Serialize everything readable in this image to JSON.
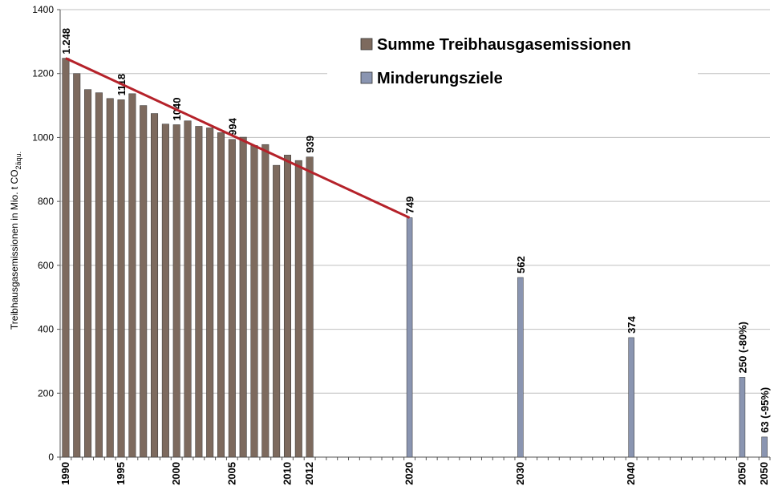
{
  "chart_data": {
    "type": "bar",
    "ylabel": "Treibhausgasemissionen in Mio. t CO",
    "ylabel_sub": "2äqu.",
    "categories": [
      "1990",
      null,
      null,
      null,
      null,
      "1995",
      null,
      null,
      null,
      null,
      "2000",
      null,
      null,
      null,
      null,
      "2005",
      null,
      null,
      null,
      null,
      "2010",
      null,
      "2012",
      null,
      null,
      null,
      null,
      null,
      null,
      null,
      null,
      "2020",
      null,
      null,
      null,
      null,
      null,
      null,
      null,
      null,
      null,
      "2030",
      null,
      null,
      null,
      null,
      null,
      null,
      null,
      null,
      null,
      "2040",
      null,
      null,
      null,
      null,
      null,
      null,
      null,
      null,
      null,
      "2050",
      null,
      "2050"
    ],
    "series": [
      {
        "name": "Summe Treibhausgasemissionen",
        "color": "#7d6a5e",
        "values": [
          1248,
          1200,
          1150,
          1140,
          1122,
          1118,
          1137,
          1100,
          1075,
          1042,
          1040,
          1052,
          1035,
          1030,
          1015,
          994,
          1001,
          975,
          978,
          913,
          945,
          928,
          939,
          null,
          null,
          null,
          null,
          null,
          null,
          null,
          null,
          null,
          null,
          null,
          null,
          null,
          null,
          null,
          null,
          null,
          null,
          null,
          null,
          null,
          null,
          null,
          null,
          null,
          null,
          null,
          null,
          null,
          null,
          null,
          null,
          null,
          null,
          null,
          null,
          null,
          null,
          null,
          null,
          null
        ],
        "value_labels": [
          "1.248",
          null,
          null,
          null,
          null,
          "1118",
          null,
          null,
          null,
          null,
          "1040",
          null,
          null,
          null,
          null,
          "994",
          null,
          null,
          null,
          null,
          null,
          null,
          "939",
          null,
          null,
          null,
          null,
          null,
          null,
          null,
          null,
          null,
          null,
          null,
          null,
          null,
          null,
          null,
          null,
          null,
          null,
          null,
          null,
          null,
          null,
          null,
          null,
          null,
          null,
          null,
          null,
          null,
          null,
          null,
          null,
          null,
          null,
          null,
          null,
          null,
          null,
          null,
          null,
          null
        ]
      },
      {
        "name": "Minderungsziele",
        "color": "#8a95b1",
        "values": [
          null,
          null,
          null,
          null,
          null,
          null,
          null,
          null,
          null,
          null,
          null,
          null,
          null,
          null,
          null,
          null,
          null,
          null,
          null,
          null,
          null,
          null,
          null,
          null,
          null,
          null,
          null,
          null,
          null,
          null,
          null,
          749,
          null,
          null,
          null,
          null,
          null,
          null,
          null,
          null,
          null,
          562,
          null,
          null,
          null,
          null,
          null,
          null,
          null,
          null,
          null,
          374,
          null,
          null,
          null,
          null,
          null,
          null,
          null,
          null,
          null,
          250,
          null,
          63
        ],
        "value_labels": [
          null,
          null,
          null,
          null,
          null,
          null,
          null,
          null,
          null,
          null,
          null,
          null,
          null,
          null,
          null,
          null,
          null,
          null,
          null,
          null,
          null,
          null,
          null,
          null,
          null,
          null,
          null,
          null,
          null,
          null,
          null,
          "749",
          null,
          null,
          null,
          null,
          null,
          null,
          null,
          null,
          null,
          "562",
          null,
          null,
          null,
          null,
          null,
          null,
          null,
          null,
          null,
          "374",
          null,
          null,
          null,
          null,
          null,
          null,
          null,
          null,
          null,
          "250 (-80%)",
          null,
          "63 (-95%)"
        ]
      }
    ],
    "ylim": [
      0,
      1400
    ],
    "yticks": [
      0,
      200,
      400,
      600,
      800,
      1000,
      1200,
      1400
    ],
    "grid": true,
    "trend_line_color": "#b5222a"
  }
}
